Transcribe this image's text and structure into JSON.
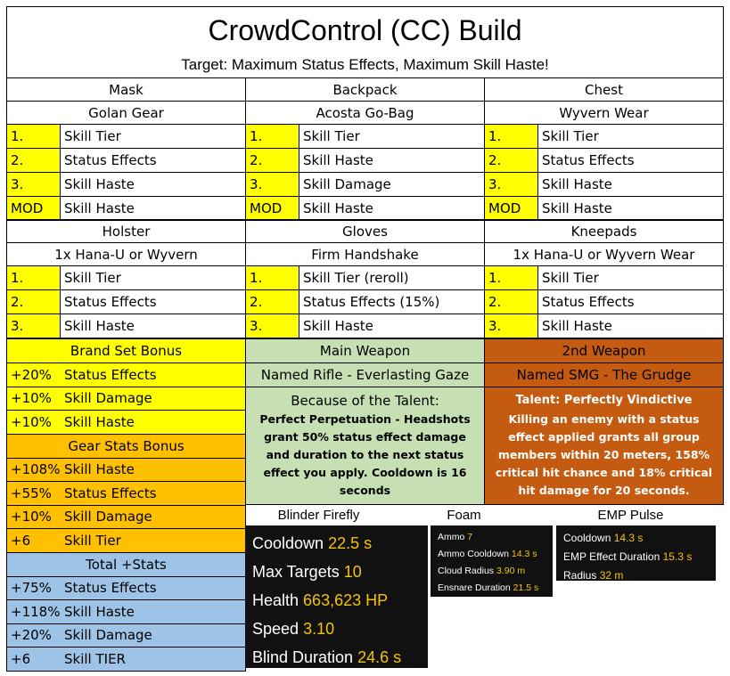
{
  "header": {
    "title": "CrowdControl (CC) Build",
    "subtitle": "Target: Maximum Status Effects, Maximum Skill Haste!"
  },
  "gear": [
    {
      "slot": "Mask",
      "name": "Golan Gear",
      "attributes": [
        {
          "rank": "1.",
          "stat": "Skill Tier"
        },
        {
          "rank": "2.",
          "stat": "Status Effects"
        },
        {
          "rank": "3.",
          "stat": "Skill Haste"
        },
        {
          "rank": "MOD",
          "stat": "Skill Haste"
        }
      ]
    },
    {
      "slot": "Backpack",
      "name": "Acosta Go-Bag",
      "attributes": [
        {
          "rank": "1.",
          "stat": "Skill Tier"
        },
        {
          "rank": "2.",
          "stat": "Skill Haste"
        },
        {
          "rank": "3.",
          "stat": "Skill Damage"
        },
        {
          "rank": "MOD",
          "stat": "Skill Haste"
        }
      ]
    },
    {
      "slot": "Chest",
      "name": "Wyvern Wear",
      "attributes": [
        {
          "rank": "1.",
          "stat": "Skill Tier"
        },
        {
          "rank": "2.",
          "stat": "Status Effects"
        },
        {
          "rank": "3.",
          "stat": "Skill Haste"
        },
        {
          "rank": "MOD",
          "stat": "Skill Haste"
        }
      ]
    },
    {
      "slot": "Holster",
      "name": "1x Hana-U or Wyvern",
      "attributes": [
        {
          "rank": "1.",
          "stat": "Skill Tier"
        },
        {
          "rank": "2.",
          "stat": "Status Effects"
        },
        {
          "rank": "3.",
          "stat": "Skill Haste"
        }
      ]
    },
    {
      "slot": "Gloves",
      "name": "Firm Handshake",
      "attributes": [
        {
          "rank": "1.",
          "stat": "Skill Tier (reroll)"
        },
        {
          "rank": "2.",
          "stat": "Status Effects (15%)"
        },
        {
          "rank": "3.",
          "stat": "Skill Haste"
        }
      ]
    },
    {
      "slot": "Kneepads",
      "name": "1x Hana-U or Wyvern Wear",
      "attributes": [
        {
          "rank": "1.",
          "stat": "Skill Tier"
        },
        {
          "rank": "2.",
          "stat": "Status Effects"
        },
        {
          "rank": "3.",
          "stat": "Skill Haste"
        }
      ]
    }
  ],
  "bonuses": [
    {
      "title": "Brand Set Bonus",
      "rows": [
        {
          "amount": "+20%",
          "stat": "Status Effects"
        },
        {
          "amount": "+10%",
          "stat": "Skill Damage"
        },
        {
          "amount": "+10%",
          "stat": "Skill Haste"
        }
      ]
    },
    {
      "title": "Gear Stats Bonus",
      "rows": [
        {
          "amount": "+108%",
          "stat": "Skill Haste"
        },
        {
          "amount": "+55%",
          "stat": "Status Effects"
        },
        {
          "amount": "+10%",
          "stat": "Skill Damage"
        },
        {
          "amount": "+6",
          "stat": "Skill Tier"
        }
      ]
    },
    {
      "title": "Total +Stats",
      "rows": [
        {
          "amount": "+75%",
          "stat": "Status Effects"
        },
        {
          "amount": "+118%",
          "stat": "Skill Haste"
        },
        {
          "amount": "+20%",
          "stat": "Skill Damage"
        },
        {
          "amount": "+6",
          "stat": "Skill TIER"
        }
      ]
    }
  ],
  "weapons": [
    {
      "title": "Main Weapon",
      "name": "Named Rifle - Everlasting Gaze",
      "talent_title": "Because of the Talent:",
      "talent_text": "Perfect Perpetuation - Headshots grant 50% status effect damage and duration to the next status effect you apply. Cooldown is 16 seconds"
    },
    {
      "title": "2nd Weapon",
      "name": "Named SMG - The Grudge",
      "talent_title": "Talent: Perfectly Vindictive",
      "talent_text": "Killing an enemy with a status effect applied grants all group members within 20 meters, 158% critical hit chance and 18% critical hit damage for 20 seconds."
    }
  ],
  "skills": [
    {
      "name": "Blinder Firefly",
      "stats": [
        {
          "label": "Cooldown",
          "value": "22.5 s"
        },
        {
          "label": "Max Targets",
          "value": "10"
        },
        {
          "label": "Health",
          "value": "663,623 HP"
        },
        {
          "label": "Speed",
          "value": "3.10"
        },
        {
          "label": "Blind Duration",
          "value": "24.6 s"
        }
      ]
    },
    {
      "name": "Foam",
      "stats": [
        {
          "label": "Ammo",
          "value": "7"
        },
        {
          "label": "Ammo Cooldown",
          "value": "14.3 s"
        },
        {
          "label": "Cloud Radius",
          "value": "3.90 m"
        },
        {
          "label": "Ensnare Duration",
          "value": "21.5 s"
        }
      ]
    },
    {
      "name": "EMP Pulse",
      "stats": [
        {
          "label": "Cooldown",
          "value": "14.3 s"
        },
        {
          "label": "EMP Effect Duration",
          "value": "15.3 s"
        },
        {
          "label": "Radius",
          "value": "32 m"
        }
      ]
    }
  ]
}
